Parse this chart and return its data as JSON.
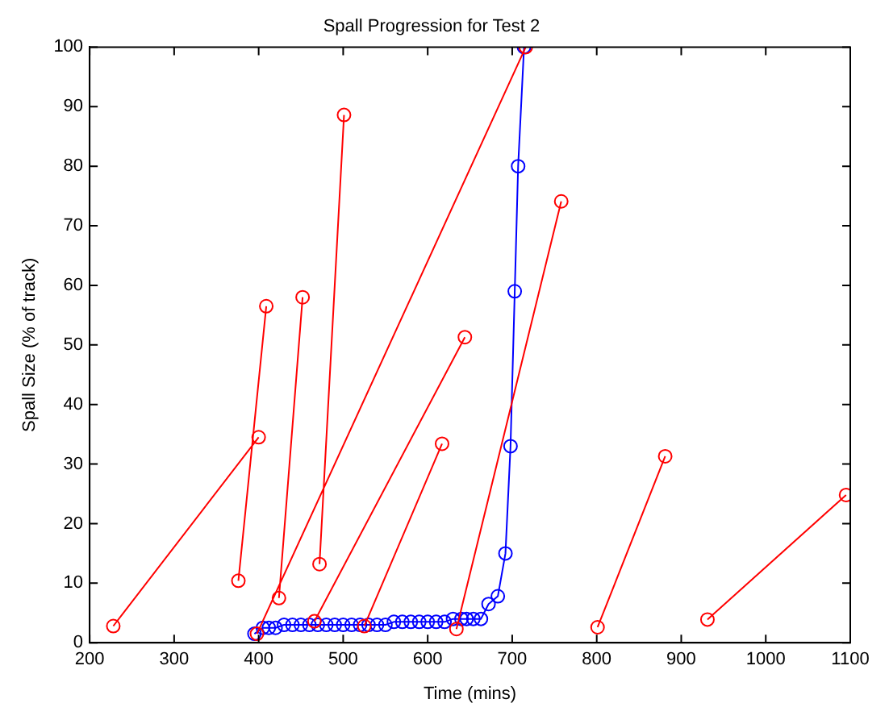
{
  "chart_data": {
    "type": "line",
    "title": "Spall Progression for Test 2",
    "xlabel": "Time (mins)",
    "ylabel": "Spall Size (% of track)",
    "xlim": [
      200,
      1100
    ],
    "xticks": [
      200,
      300,
      400,
      500,
      600,
      700,
      800,
      900,
      1000,
      1100
    ],
    "ylim": [
      0,
      100
    ],
    "yticks": [
      0,
      10,
      20,
      30,
      40,
      50,
      60,
      70,
      80,
      90,
      100
    ],
    "grid": false,
    "legend": false,
    "marker": "circle",
    "line_style": "solid",
    "series": [
      {
        "color": "#ff0000",
        "x": [
          228,
          400,
          null,
          376,
          409,
          null,
          424,
          452,
          null,
          472,
          501,
          null,
          398,
          716,
          null,
          466,
          644,
          null,
          525,
          617,
          null,
          634,
          758,
          null,
          801,
          881,
          null,
          931,
          1095
        ],
        "values": [
          2.8,
          34.5,
          null,
          10.4,
          56.5,
          null,
          7.5,
          58,
          null,
          13.2,
          88.6,
          null,
          1.5,
          100,
          null,
          3.6,
          51.3,
          null,
          2.8,
          33.4,
          null,
          2.3,
          74.1,
          null,
          2.6,
          31.3,
          null,
          3.9,
          24.8
        ]
      },
      {
        "color": "#0000ff",
        "x": [
          395,
          405,
          412,
          420,
          430,
          440,
          450,
          460,
          470,
          480,
          490,
          500,
          510,
          520,
          530,
          540,
          550,
          560,
          570,
          580,
          590,
          600,
          610,
          620,
          630,
          640,
          646,
          654,
          663,
          672,
          683,
          692,
          698,
          703,
          707,
          714
        ],
        "values": [
          1.5,
          2.5,
          2.5,
          2.5,
          3,
          3,
          3,
          3,
          3,
          3,
          3,
          3,
          3,
          3,
          3,
          3,
          3,
          3.5,
          3.5,
          3.5,
          3.5,
          3.5,
          3.5,
          3.5,
          4,
          4,
          4,
          4,
          4,
          6.5,
          7.8,
          15,
          33,
          59,
          80,
          100
        ]
      }
    ]
  }
}
